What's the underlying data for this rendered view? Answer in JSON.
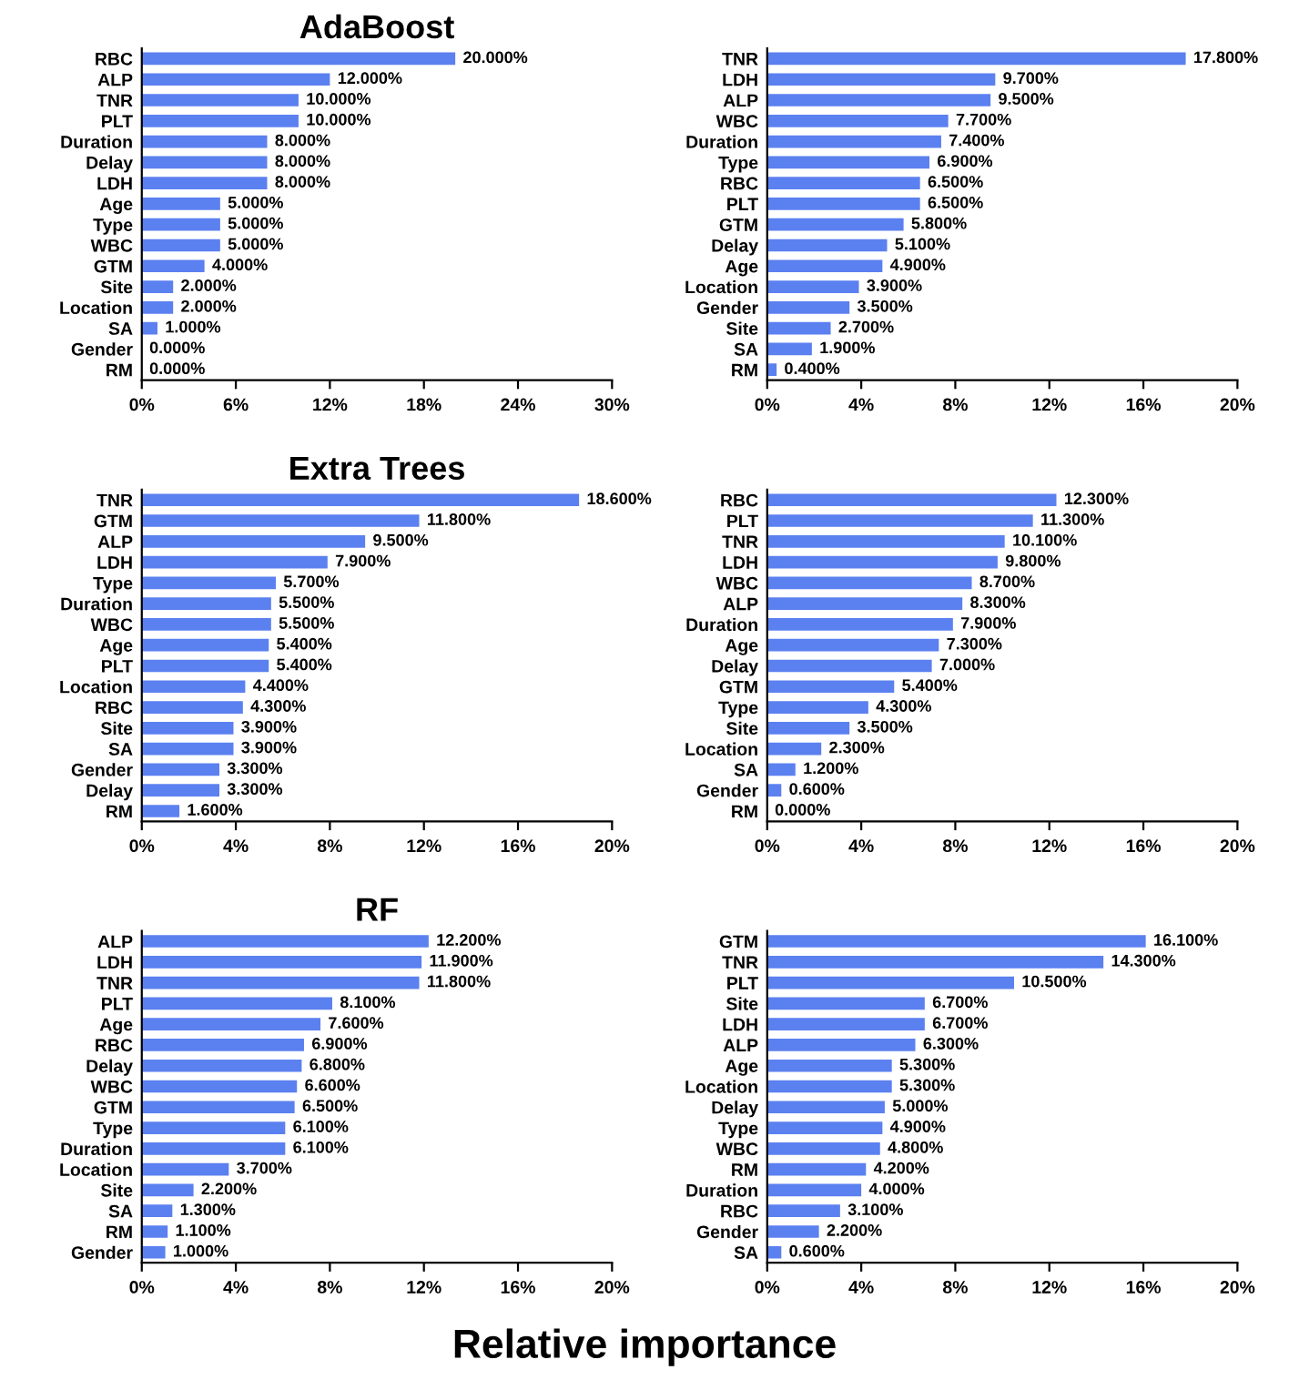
{
  "chart_data": [
    {
      "type": "bar",
      "orientation": "horizontal",
      "title": "AdaBoost",
      "categories": [
        "RBC",
        "ALP",
        "TNR",
        "PLT",
        "Duration",
        "Delay",
        "LDH",
        "Age",
        "Type",
        "WBC",
        "GTM",
        "Site",
        "Location",
        "SA",
        "Gender",
        "RM"
      ],
      "values": [
        20,
        12,
        10,
        10,
        8,
        8,
        8,
        5,
        5,
        5,
        4,
        2,
        2,
        1,
        0,
        0
      ],
      "value_labels": [
        "20.000%",
        "12.000%",
        "10.000%",
        "10.000%",
        "8.000%",
        "8.000%",
        "8.000%",
        "5.000%",
        "5.000%",
        "5.000%",
        "4.000%",
        "2.000%",
        "2.000%",
        "1.000%",
        "0.000%",
        "0.000%"
      ],
      "color": "#5b80f0",
      "xlim": [
        0,
        30
      ],
      "xticks": [
        {
          "value": 0,
          "label": "0%"
        },
        {
          "value": 6,
          "label": "6%"
        },
        {
          "value": 12,
          "label": "12%"
        },
        {
          "value": 18,
          "label": "18%"
        },
        {
          "value": 24,
          "label": "24%"
        },
        {
          "value": 30,
          "label": "30%"
        }
      ],
      "grid": false
    },
    {
      "type": "bar",
      "orientation": "horizontal",
      "categories": [
        "TNR",
        "LDH",
        "ALP",
        "WBC",
        "Duration",
        "Type",
        "RBC",
        "PLT",
        "GTM",
        "Delay",
        "Age",
        "Location",
        "Gender",
        "Site",
        "SA",
        "RM"
      ],
      "values": [
        17.8,
        9.7,
        9.5,
        7.7,
        7.4,
        6.9,
        6.5,
        6.5,
        5.8,
        5.1,
        4.9,
        3.9,
        3.5,
        2.7,
        1.9,
        0.4
      ],
      "value_labels": [
        "17.800%",
        "9.700%",
        "9.500%",
        "7.700%",
        "7.400%",
        "6.900%",
        "6.500%",
        "6.500%",
        "5.800%",
        "5.100%",
        "4.900%",
        "3.900%",
        "3.500%",
        "2.700%",
        "1.900%",
        "0.400%"
      ],
      "color": "#5b80f0",
      "xlim": [
        0,
        20
      ],
      "xticks": [
        {
          "value": 0,
          "label": "0%"
        },
        {
          "value": 4,
          "label": "4%"
        },
        {
          "value": 8,
          "label": "8%"
        },
        {
          "value": 12,
          "label": "12%"
        },
        {
          "value": 16,
          "label": "16%"
        },
        {
          "value": 20,
          "label": "20%"
        }
      ],
      "grid": false
    },
    {
      "type": "bar",
      "orientation": "horizontal",
      "title": "Extra Trees",
      "categories": [
        "TNR",
        "GTM",
        "ALP",
        "LDH",
        "Type",
        "Duration",
        "WBC",
        "Age",
        "PLT",
        "Location",
        "RBC",
        "Site",
        "SA",
        "Gender",
        "Delay",
        "RM"
      ],
      "values": [
        18.6,
        11.8,
        9.5,
        7.9,
        5.7,
        5.5,
        5.5,
        5.4,
        5.4,
        4.4,
        4.3,
        3.9,
        3.9,
        3.3,
        3.3,
        1.6
      ],
      "value_labels": [
        "18.600%",
        "11.800%",
        "9.500%",
        "7.900%",
        "5.700%",
        "5.500%",
        "5.500%",
        "5.400%",
        "5.400%",
        "4.400%",
        "4.300%",
        "3.900%",
        "3.900%",
        "3.300%",
        "3.300%",
        "1.600%"
      ],
      "color": "#5b80f0",
      "xlim": [
        0,
        20
      ],
      "xticks": [
        {
          "value": 0,
          "label": "0%"
        },
        {
          "value": 4,
          "label": "4%"
        },
        {
          "value": 8,
          "label": "8%"
        },
        {
          "value": 12,
          "label": "12%"
        },
        {
          "value": 16,
          "label": "16%"
        },
        {
          "value": 20,
          "label": "20%"
        }
      ],
      "grid": false
    },
    {
      "type": "bar",
      "orientation": "horizontal",
      "categories": [
        "RBC",
        "PLT",
        "TNR",
        "LDH",
        "WBC",
        "ALP",
        "Duration",
        "Age",
        "Delay",
        "GTM",
        "Type",
        "Site",
        "Location",
        "SA",
        "Gender",
        "RM"
      ],
      "values": [
        12.3,
        11.3,
        10.1,
        9.8,
        8.7,
        8.3,
        7.9,
        7.3,
        7.0,
        5.4,
        4.3,
        3.5,
        2.3,
        1.2,
        0.6,
        0.0
      ],
      "value_labels": [
        "12.300%",
        "11.300%",
        "10.100%",
        "9.800%",
        "8.700%",
        "8.300%",
        "7.900%",
        "7.300%",
        "7.000%",
        "5.400%",
        "4.300%",
        "3.500%",
        "2.300%",
        "1.200%",
        "0.600%",
        "0.000%"
      ],
      "color": "#5b80f0",
      "xlim": [
        0,
        20
      ],
      "xticks": [
        {
          "value": 0,
          "label": "0%"
        },
        {
          "value": 4,
          "label": "4%"
        },
        {
          "value": 8,
          "label": "8%"
        },
        {
          "value": 12,
          "label": "12%"
        },
        {
          "value": 16,
          "label": "16%"
        },
        {
          "value": 20,
          "label": "20%"
        }
      ],
      "grid": false
    },
    {
      "type": "bar",
      "orientation": "horizontal",
      "title": "RF",
      "categories": [
        "ALP",
        "LDH",
        "TNR",
        "PLT",
        "Age",
        "RBC",
        "Delay",
        "WBC",
        "GTM",
        "Type",
        "Duration",
        "Location",
        "Site",
        "SA",
        "RM",
        "Gender"
      ],
      "values": [
        12.2,
        11.9,
        11.8,
        8.1,
        7.6,
        6.9,
        6.8,
        6.6,
        6.5,
        6.1,
        6.1,
        3.7,
        2.2,
        1.3,
        1.1,
        1.0
      ],
      "value_labels": [
        "12.200%",
        "11.900%",
        "11.800%",
        "8.100%",
        "7.600%",
        "6.900%",
        "6.800%",
        "6.600%",
        "6.500%",
        "6.100%",
        "6.100%",
        "3.700%",
        "2.200%",
        "1.300%",
        "1.100%",
        "1.000%"
      ],
      "color": "#5b80f0",
      "xlim": [
        0,
        20
      ],
      "xticks": [
        {
          "value": 0,
          "label": "0%"
        },
        {
          "value": 4,
          "label": "4%"
        },
        {
          "value": 8,
          "label": "8%"
        },
        {
          "value": 12,
          "label": "12%"
        },
        {
          "value": 16,
          "label": "16%"
        },
        {
          "value": 20,
          "label": "20%"
        }
      ],
      "grid": false
    },
    {
      "type": "bar",
      "orientation": "horizontal",
      "xlabel": "Relative importance",
      "categories": [
        "GTM",
        "TNR",
        "PLT",
        "Site",
        "LDH",
        "ALP",
        "Age",
        "Location",
        "Delay",
        "Type",
        "WBC",
        "RM",
        "Duration",
        "RBC",
        "Gender",
        "SA"
      ],
      "values": [
        16.1,
        14.3,
        10.5,
        6.7,
        6.7,
        6.3,
        5.3,
        5.3,
        5.0,
        4.9,
        4.8,
        4.2,
        4.0,
        3.1,
        2.2,
        0.6
      ],
      "value_labels": [
        "16.100%",
        "14.300%",
        "10.500%",
        "6.700%",
        "6.700%",
        "6.300%",
        "5.300%",
        "5.300%",
        "5.000%",
        "4.900%",
        "4.800%",
        "4.200%",
        "4.000%",
        "3.100%",
        "2.200%",
        "0.600%"
      ],
      "color": "#5b80f0",
      "xlim": [
        0,
        20
      ],
      "xticks": [
        {
          "value": 0,
          "label": "0%"
        },
        {
          "value": 4,
          "label": "4%"
        },
        {
          "value": 8,
          "label": "8%"
        },
        {
          "value": 12,
          "label": "12%"
        },
        {
          "value": 16,
          "label": "16%"
        },
        {
          "value": 20,
          "label": "20%"
        }
      ],
      "grid": false
    }
  ]
}
